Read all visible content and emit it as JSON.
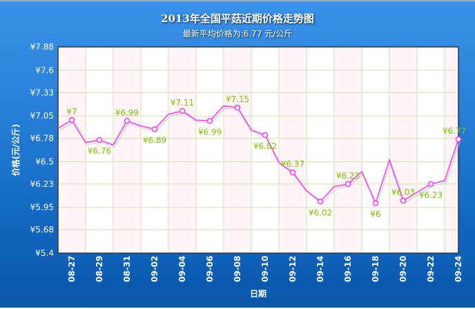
{
  "title": "2013年全国平菇近期价格走势图",
  "subtitle": "最新平均价格为:6.77 元/公斤",
  "chart_data": {
    "type": "line",
    "title": "2013年全国平菇近期价格走势图",
    "subtitle": "最新平均价格为:6.77 元/公斤",
    "xlabel": "日期",
    "ylabel": "价格(元/公斤)",
    "ylim": [
      5.4,
      7.88
    ],
    "yticks": [
      "¥5.4",
      "¥5.68",
      "¥5.95",
      "¥6.23",
      "¥6.5",
      "¥6.78",
      "¥7.05",
      "¥7.33",
      "¥7.6",
      "¥7.88"
    ],
    "ytick_values": [
      5.4,
      5.68,
      5.95,
      6.23,
      6.5,
      6.78,
      7.05,
      7.33,
      7.6,
      7.88
    ],
    "xticks": [
      "08-27",
      "08-29",
      "08-31",
      "09-02",
      "09-04",
      "09-06",
      "09-08",
      "09-10",
      "09-12",
      "09-14",
      "09-16",
      "09-18",
      "09-20",
      "09-22",
      "09-24"
    ],
    "x": [
      "08-26",
      "08-27",
      "08-28",
      "08-29",
      "08-30",
      "08-31",
      "09-01",
      "09-02",
      "09-03",
      "09-04",
      "09-05",
      "09-06",
      "09-07",
      "09-08",
      "09-09",
      "09-10",
      "09-11",
      "09-12",
      "09-13",
      "09-14",
      "09-15",
      "09-16",
      "09-17",
      "09-18",
      "09-19",
      "09-20",
      "09-21",
      "09-22",
      "09-23",
      "09-24"
    ],
    "series": [
      {
        "values": [
          6.9,
          7,
          6.73,
          6.76,
          6.7,
          6.99,
          6.93,
          6.89,
          7.07,
          7.11,
          7.0,
          6.99,
          7.17,
          7.15,
          6.88,
          6.82,
          6.49,
          6.37,
          6.15,
          6.02,
          6.2,
          6.23,
          6.38,
          6,
          6.52,
          6.03,
          6.13,
          6.23,
          6.27,
          6.77
        ],
        "data_labels": {
          "08-27": "¥7",
          "08-29": "¥6.76",
          "08-31": "¥6.99",
          "09-02": "¥6.89",
          "09-04": "¥7.11",
          "09-06": "¥6.99",
          "09-08": "¥7.15",
          "09-10": "¥6.82",
          "09-12": "¥6.37",
          "09-14": "¥6.02",
          "09-16": "¥6.23",
          "09-18": "¥6",
          "09-20": "¥6.03",
          "09-22": "¥6.23",
          "09-24": "¥6.77"
        },
        "color": "#ff33ff"
      }
    ],
    "label_color": "#7cc400",
    "grid": true
  }
}
